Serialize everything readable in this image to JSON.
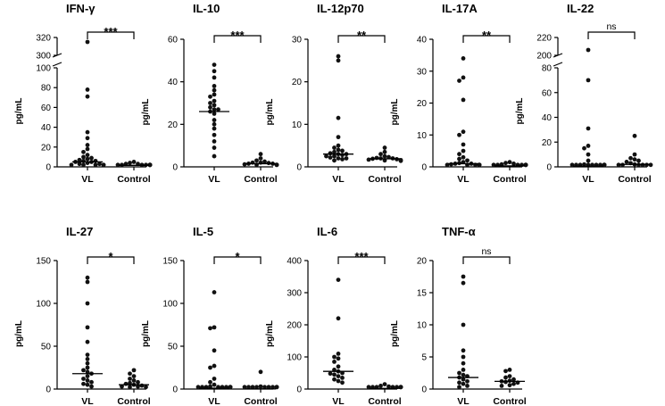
{
  "figure_type": "cytokine dot plots",
  "chart_data": [
    {
      "type": "scatter",
      "title": "IFN-γ",
      "ylabel": "pg/mL",
      "categories": [
        "VL",
        "Control"
      ],
      "yticks": [
        "0",
        "20",
        "40",
        "60",
        "80",
        "100",
        "300",
        "320"
      ],
      "ylim": [
        0,
        320
      ],
      "break": [
        100,
        300
      ],
      "significance": "***",
      "series": [
        {
          "name": "VL",
          "median": 5,
          "values": [
            315,
            78,
            71,
            35,
            29,
            22,
            18,
            15,
            12,
            10,
            9,
            8,
            7,
            6,
            6,
            5,
            5,
            4,
            3,
            3,
            2,
            2,
            1,
            1,
            0.5
          ]
        },
        {
          "name": "Control",
          "median": 1.5,
          "values": [
            5,
            4,
            3,
            3,
            2,
            2,
            2,
            1.5,
            1.5,
            1,
            1,
            0.5,
            0.5,
            0.3
          ]
        }
      ]
    },
    {
      "type": "scatter",
      "title": "IL-10",
      "ylabel": "pg/mL",
      "categories": [
        "VL",
        "Control"
      ],
      "yticks": [
        "0",
        "20",
        "40",
        "60"
      ],
      "ylim": [
        0,
        60
      ],
      "significance": "***",
      "series": [
        {
          "name": "VL",
          "median": 26,
          "values": [
            48,
            45,
            42,
            38,
            36,
            34,
            33,
            31,
            30,
            29,
            28,
            27,
            27,
            26,
            25,
            22,
            20,
            18,
            15,
            12,
            9,
            5
          ]
        },
        {
          "name": "Control",
          "median": 1.5,
          "values": [
            6,
            4,
            3,
            2.5,
            2,
            2,
            1.8,
            1.5,
            1.5,
            1.2,
            1,
            1,
            0.8,
            0.5
          ]
        }
      ]
    },
    {
      "type": "scatter",
      "title": "IL-12p70",
      "ylabel": "pg/mL",
      "categories": [
        "VL",
        "Control"
      ],
      "yticks": [
        "0",
        "10",
        "20",
        "30"
      ],
      "ylim": [
        0,
        30
      ],
      "significance": "**",
      "series": [
        {
          "name": "VL",
          "median": 3,
          "values": [
            26,
            25,
            11.5,
            7,
            5,
            4.5,
            4,
            3.8,
            3.5,
            3.2,
            3,
            3,
            2.8,
            2.5,
            2.5,
            2.2,
            2,
            2,
            1.8,
            1.5
          ]
        },
        {
          "name": "Control",
          "median": 1.9,
          "values": [
            4.5,
            3.5,
            3,
            2.5,
            2.3,
            2.1,
            2,
            2,
            1.9,
            1.8,
            1.7,
            1.6,
            1.5,
            1.4
          ]
        }
      ]
    },
    {
      "type": "scatter",
      "title": "IL-17A",
      "ylabel": "pg/mL",
      "categories": [
        "VL",
        "Control"
      ],
      "yticks": [
        "0",
        "10",
        "20",
        "30",
        "40"
      ],
      "ylim": [
        0,
        40
      ],
      "significance": "**",
      "series": [
        {
          "name": "VL",
          "median": 1,
          "values": [
            34,
            28,
            27,
            21,
            11,
            10,
            7,
            5,
            4,
            3,
            2.5,
            2,
            1.5,
            1.2,
            1,
            1,
            0.8,
            0.6,
            0.5,
            0.3,
            0.2,
            0.1,
            0,
            0
          ]
        },
        {
          "name": "Control",
          "median": 0.3,
          "values": [
            1.5,
            1.2,
            1,
            0.8,
            0.6,
            0.5,
            0.4,
            0.3,
            0.2,
            0.1,
            0,
            0
          ]
        }
      ]
    },
    {
      "type": "scatter",
      "title": "IL-22",
      "ylabel": "pg/mL",
      "categories": [
        "VL",
        "Control"
      ],
      "yticks": [
        "0",
        "20",
        "40",
        "60",
        "80",
        "200",
        "220"
      ],
      "ylim": [
        0,
        220
      ],
      "break": [
        80,
        200
      ],
      "significance": "ns",
      "series": [
        {
          "name": "VL",
          "median": 0.5,
          "values": [
            206,
            70,
            31,
            17,
            15,
            10,
            5,
            2,
            1,
            0.5,
            0.3,
            0.2,
            0.1,
            0,
            0,
            0,
            0,
            0,
            0,
            0
          ]
        },
        {
          "name": "Control",
          "median": 2,
          "values": [
            25,
            10,
            7,
            6,
            5,
            4,
            3,
            2,
            1.5,
            1,
            0.5,
            0.3,
            0,
            0
          ]
        }
      ]
    },
    {
      "type": "scatter",
      "title": "IL-27",
      "ylabel": "pg/mL",
      "categories": [
        "VL",
        "Control"
      ],
      "yticks": [
        "0",
        "50",
        "100",
        "150"
      ],
      "ylim": [
        0,
        150
      ],
      "significance": "*",
      "series": [
        {
          "name": "VL",
          "median": 18,
          "values": [
            130,
            125,
            100,
            72,
            55,
            40,
            35,
            30,
            25,
            22,
            20,
            18,
            15,
            12,
            10,
            8,
            6,
            5,
            3
          ]
        },
        {
          "name": "Control",
          "median": 5,
          "values": [
            22,
            18,
            15,
            12,
            10,
            8,
            7,
            6,
            5,
            4,
            3,
            3,
            2,
            1
          ]
        }
      ]
    },
    {
      "type": "scatter",
      "title": "IL-5",
      "ylabel": "pg/mL",
      "categories": [
        "VL",
        "Control"
      ],
      "yticks": [
        "0",
        "50",
        "100",
        "150"
      ],
      "ylim": [
        0,
        150
      ],
      "significance": "*",
      "series": [
        {
          "name": "VL",
          "median": 1,
          "values": [
            113,
            72,
            71,
            45,
            27,
            25,
            12,
            8,
            5,
            3,
            2,
            1,
            1,
            0.5,
            0.3,
            0.2,
            0.1,
            0,
            0,
            0
          ]
        },
        {
          "name": "Control",
          "median": 0.2,
          "values": [
            20,
            3,
            2,
            1,
            0.5,
            0.3,
            0.2,
            0.1,
            0,
            0,
            0,
            0
          ]
        }
      ]
    },
    {
      "type": "scatter",
      "title": "IL-6",
      "ylabel": "pg/mL",
      "categories": [
        "VL",
        "Control"
      ],
      "yticks": [
        "0",
        "100",
        "200",
        "300",
        "400"
      ],
      "ylim": [
        0,
        400
      ],
      "significance": "***",
      "series": [
        {
          "name": "VL",
          "median": 55,
          "values": [
            340,
            220,
            110,
            100,
            95,
            85,
            70,
            60,
            55,
            50,
            48,
            45,
            40,
            35,
            30,
            25,
            20
          ]
        },
        {
          "name": "Control",
          "median": 2,
          "values": [
            15,
            10,
            8,
            5,
            3,
            2,
            2,
            1,
            1,
            0.5,
            0.5,
            0.3
          ]
        }
      ]
    },
    {
      "type": "scatter",
      "title": "TNF-α",
      "ylabel": "pg/mL",
      "categories": [
        "VL",
        "Control"
      ],
      "yticks": [
        "0",
        "5",
        "10",
        "15",
        "20"
      ],
      "ylim": [
        0,
        20
      ],
      "significance": "ns",
      "series": [
        {
          "name": "VL",
          "median": 1.8,
          "values": [
            17.5,
            16.5,
            10,
            6,
            5,
            4,
            3,
            2.5,
            2.2,
            2,
            1.8,
            1.5,
            1.2,
            1,
            0.8,
            0.5,
            0.3
          ]
        },
        {
          "name": "Control",
          "median": 1.2,
          "values": [
            3,
            2.8,
            2,
            1.8,
            1.5,
            1.3,
            1.2,
            1.1,
            1,
            0.8,
            0.6,
            0.5
          ]
        }
      ]
    }
  ]
}
